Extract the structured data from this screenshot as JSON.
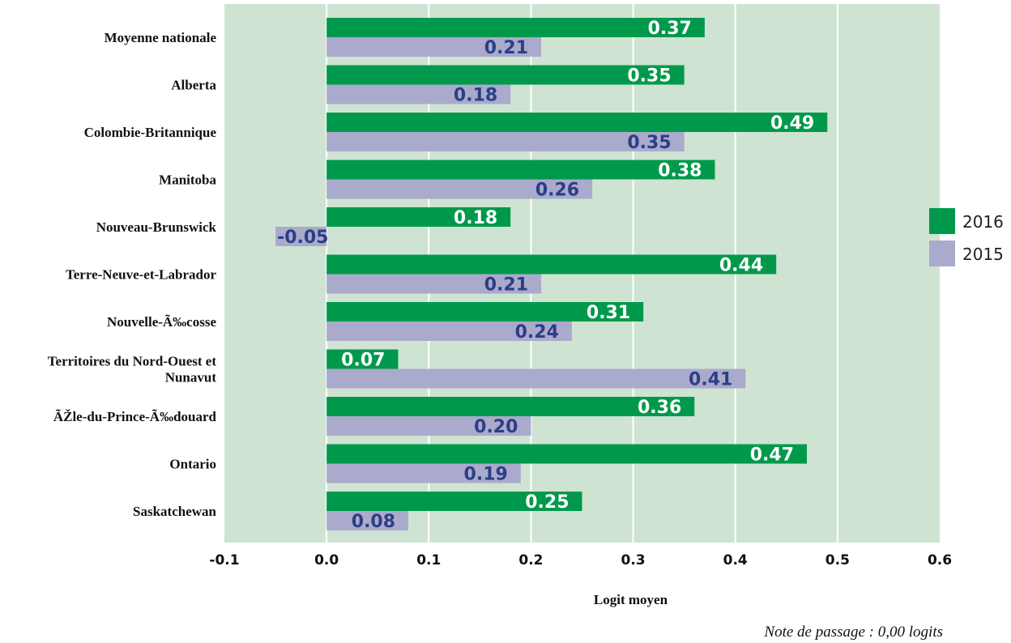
{
  "chart_data": {
    "type": "bar",
    "orientation": "horizontal",
    "categories": [
      "Moyenne nationale",
      "Alberta",
      "Colombie-Britannique",
      "Manitoba",
      "Nouveau-Brunswick",
      "Terre-Neuve-et-Labrador",
      "Nouvelle-Ã‰cosse",
      "Territoires du Nord-Ouest et Nunavut",
      "ÃŽle-du-Prince-Ã‰douard",
      "Ontario",
      "Saskatchewan"
    ],
    "series": [
      {
        "name": "2016",
        "color": "#00994c",
        "values": [
          0.37,
          0.35,
          0.49,
          0.38,
          0.18,
          0.44,
          0.31,
          0.07,
          0.36,
          0.47,
          0.25
        ],
        "labels": [
          "0.37",
          "0.35",
          "0.49",
          "0.38",
          "0.18",
          "0.44",
          "0.31",
          "0.07",
          "0.36",
          "0.47",
          "0.25"
        ]
      },
      {
        "name": "2015",
        "color": "#aaaacc",
        "values": [
          0.21,
          0.18,
          0.35,
          0.26,
          -0.05,
          0.21,
          0.24,
          0.41,
          0.2,
          0.19,
          0.08
        ],
        "labels": [
          "0.21",
          "0.18",
          "0.35",
          "0.26",
          "-0.05",
          "0.21",
          "0.24",
          "0.41",
          "0.20",
          "0.19",
          "0.08"
        ]
      }
    ],
    "xlim": [
      -0.1,
      0.6
    ],
    "xticks": [
      "-0.1",
      "0.0",
      "0.1",
      "0.2",
      "0.3",
      "0.4",
      "0.5",
      "0.6"
    ],
    "xlabel": "Logit moyen",
    "ylabel": "",
    "grid": true,
    "legend_position": "right",
    "background_color": "#cfe3d2",
    "note": "Note de passage : 0,00 logits"
  }
}
